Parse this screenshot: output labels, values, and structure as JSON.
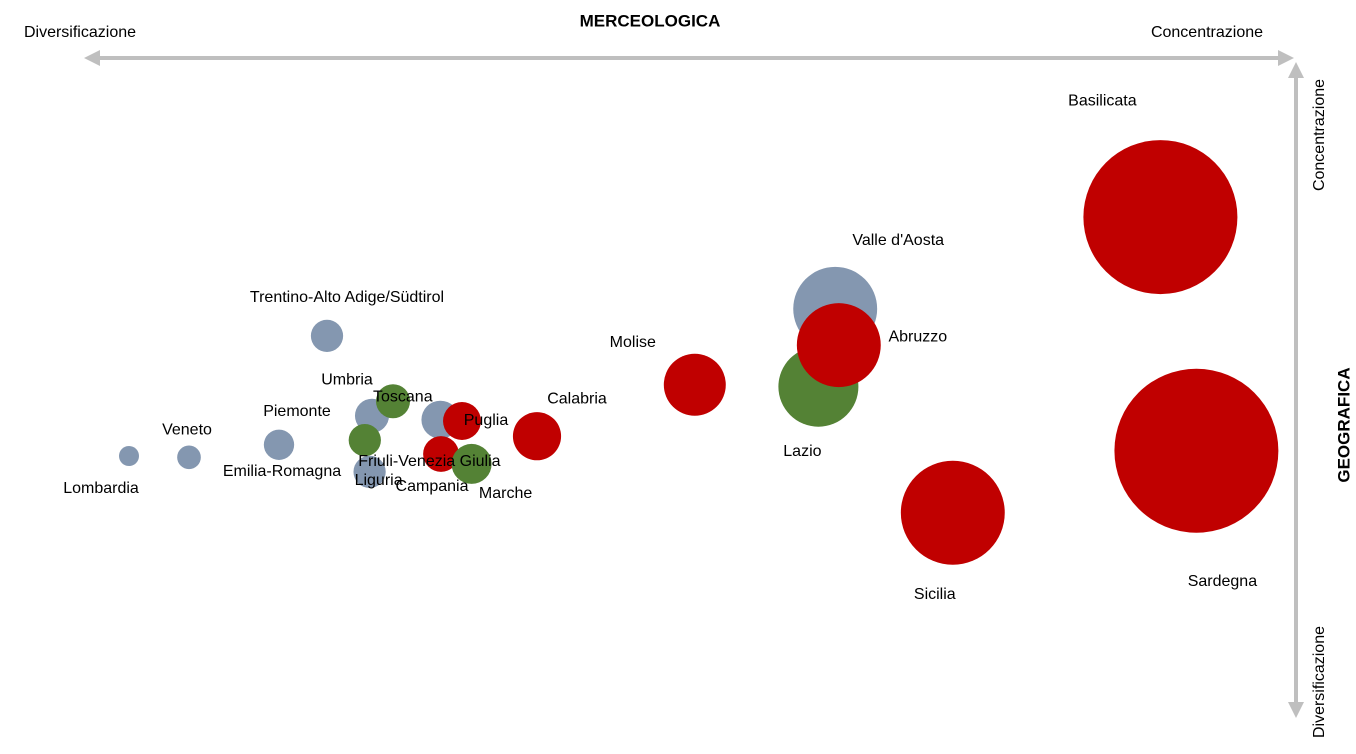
{
  "chart_data": {
    "type": "bubble",
    "x_label": "MERCEOLOGICA",
    "x_left_label": "Diversificazione",
    "x_right_label": "Concentrazione",
    "y_label": "GEOGRAFICA",
    "y_top_label": "Concentrazione",
    "y_bottom_label": "Diversificazione",
    "xlim": [
      0,
      100
    ],
    "ylim": [
      0,
      100
    ],
    "points": [
      {
        "label": "Lombardia",
        "x": 3.25,
        "y": 40.0,
        "size": 1.0,
        "color": "#8497b0"
      },
      {
        "label": "Veneto",
        "x": 8.25,
        "y": 39.8,
        "size": 1.4,
        "color": "#8497b0"
      },
      {
        "label": "Piemonte",
        "x": 15.75,
        "y": 41.7,
        "size": 2.3,
        "color": "#8497b0"
      },
      {
        "label": "Trentino-Alto Adige/Südtirol",
        "x": 19.75,
        "y": 58.2,
        "size": 2.6,
        "color": "#8497b0"
      },
      {
        "label": "Emilia-Romagna",
        "x": 23.5,
        "y": 46.1,
        "size": 2.9,
        "color": "#8497b0"
      },
      {
        "label": "Umbria",
        "x": 25.25,
        "y": 48.3,
        "size": 2.9,
        "color": "#548235"
      },
      {
        "label": "Toscana",
        "x": 22.9,
        "y": 42.4,
        "size": 2.6,
        "color": "#548235"
      },
      {
        "label": "Liguria",
        "x": 23.3,
        "y": 37.6,
        "size": 2.6,
        "color": "#8497b0"
      },
      {
        "label": "Friuli-Venezia Giulia",
        "x": 29.2,
        "y": 45.5,
        "size": 3.6,
        "color": "#8497b0"
      },
      {
        "label": "Puglia",
        "x": 31.0,
        "y": 45.3,
        "size": 3.6,
        "color": "#c00000"
      },
      {
        "label": "Campania",
        "x": 29.25,
        "y": 40.3,
        "size": 3.2,
        "color": "#c00000"
      },
      {
        "label": "Marche",
        "x": 31.8,
        "y": 38.8,
        "size": 4.0,
        "color": "#548235"
      },
      {
        "label": "Calabria",
        "x": 37.25,
        "y": 43.0,
        "size": 5.8,
        "color": "#c00000"
      },
      {
        "label": "Molise",
        "x": 50.4,
        "y": 50.8,
        "size": 9.6,
        "color": "#c00000"
      },
      {
        "label": "Valle d'Aosta",
        "x": 62.1,
        "y": 62.3,
        "size": 17.6,
        "color": "#8497b0"
      },
      {
        "label": "Lazio",
        "x": 60.7,
        "y": 50.5,
        "size": 16.0,
        "color": "#548235"
      },
      {
        "label": "Abruzzo",
        "x": 62.4,
        "y": 56.8,
        "size": 17.6,
        "color": "#c00000"
      },
      {
        "label": "Basilicata",
        "x": 89.2,
        "y": 76.2,
        "size": 59.3,
        "color": "#c00000"
      },
      {
        "label": "Sicilia",
        "x": 71.9,
        "y": 31.4,
        "size": 27.0,
        "color": "#c00000"
      },
      {
        "label": "Sardegna",
        "x": 92.2,
        "y": 40.8,
        "size": 67.2,
        "color": "#c00000"
      }
    ]
  }
}
